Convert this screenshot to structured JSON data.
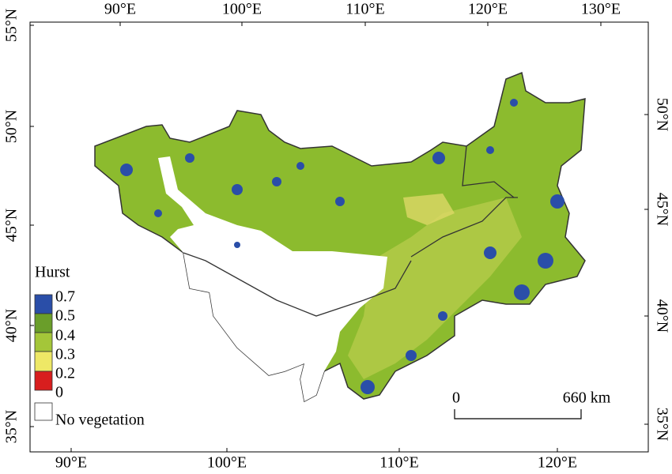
{
  "axes": {
    "top": [
      "90°E",
      "100°E",
      "110°E",
      "120°E",
      "130°E"
    ],
    "bottom": [
      "90°E",
      "100°E",
      "110°E",
      "120°E"
    ],
    "left": [
      "55°N",
      "50°N",
      "45°N",
      "40°N",
      "35°N"
    ],
    "right": [
      "50°N",
      "45°N",
      "40°N",
      "35°N"
    ]
  },
  "legend": {
    "title": "Hurst",
    "labels": [
      "0.7",
      "0.5",
      "0.4",
      "0.3",
      "0.2",
      "0"
    ],
    "no_data": "No vegetation"
  },
  "scale_bar": {
    "start": "0",
    "end": "660 km"
  }
}
